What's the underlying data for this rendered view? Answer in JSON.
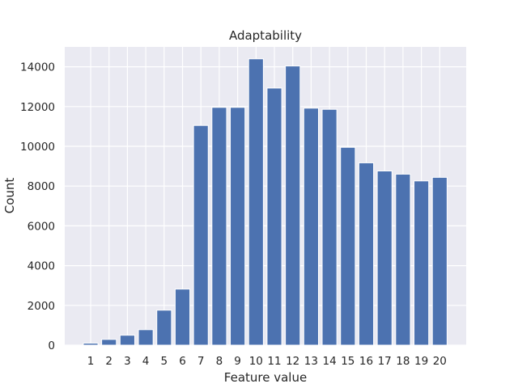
{
  "chart_data": {
    "type": "bar",
    "title": "Adaptability",
    "xlabel": "Feature value",
    "ylabel": "Count",
    "categories": [
      "1",
      "2",
      "3",
      "4",
      "5",
      "6",
      "7",
      "8",
      "9",
      "10",
      "11",
      "12",
      "13",
      "14",
      "15",
      "16",
      "17",
      "18",
      "19",
      "20"
    ],
    "values": [
      100,
      290,
      500,
      780,
      1760,
      2820,
      11050,
      11960,
      11960,
      14400,
      12930,
      14040,
      11920,
      11860,
      9950,
      9170,
      8760,
      8600,
      8260,
      8440
    ],
    "ylim": [
      0,
      15000
    ],
    "yticks": [
      0,
      2000,
      4000,
      6000,
      8000,
      10000,
      12000,
      14000
    ],
    "grid": true,
    "bar_color": "#4c72b0",
    "background_color": "#eaeaf2"
  }
}
